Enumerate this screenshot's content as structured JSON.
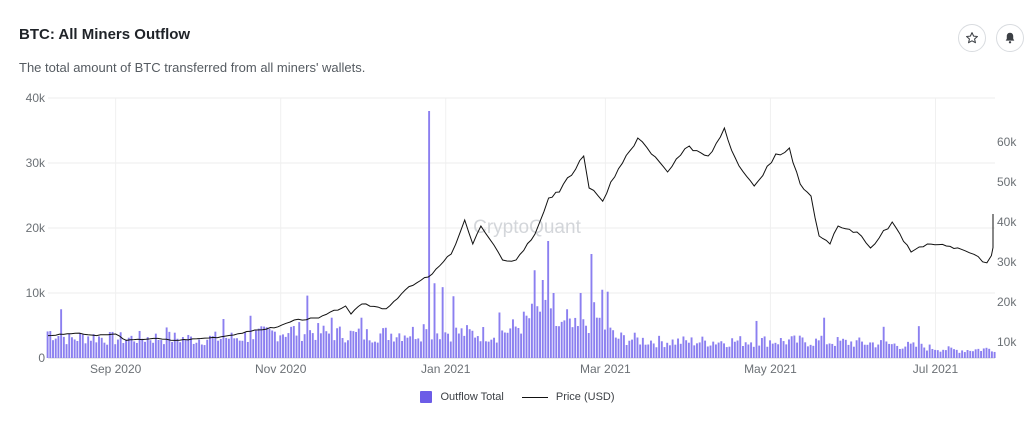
{
  "header": {
    "title": "BTC: All Miners Outflow",
    "subtitle": "The total amount of BTC transferred from all miners' wallets."
  },
  "icons": {
    "favorite": "star-icon",
    "alert": "bell-icon"
  },
  "watermark": "CryptoQuant",
  "colors": {
    "bars": "#8b7ff0",
    "bar_legend": "#6c5ce7",
    "price_line": "#111111",
    "grid": "#ececec"
  },
  "chart_data": {
    "type": "bar",
    "x_range": [
      "2020-08-07",
      "2021-07-23"
    ],
    "x_ticks": [
      "Sep 2020",
      "Nov 2020",
      "Jan 2021",
      "Mar 2021",
      "May 2021",
      "Jul 2021"
    ],
    "y_left": {
      "ticks": [
        "0",
        "10k",
        "20k",
        "30k",
        "40k"
      ],
      "range": [
        0,
        40000
      ]
    },
    "y_right": {
      "ticks": [
        "10k",
        "20k",
        "30k",
        "40k",
        "50k",
        "60k"
      ],
      "range": [
        6000,
        71000
      ]
    },
    "grid": true,
    "legend_position": "bottom-center",
    "series": [
      {
        "name": "Outflow Total",
        "kind": "bar",
        "axis": "left",
        "unit": "BTC",
        "anchors": [
          [
            "2020-08-07",
            4200
          ],
          [
            "2020-08-15",
            3000
          ],
          [
            "2020-08-22",
            3400
          ],
          [
            "2020-09-01",
            3000
          ],
          [
            "2020-09-15",
            3200
          ],
          [
            "2020-10-01",
            3000
          ],
          [
            "2020-10-15",
            3200
          ],
          [
            "2020-10-25",
            3700
          ],
          [
            "2020-11-05",
            4300
          ],
          [
            "2020-11-20",
            3900
          ],
          [
            "2020-12-01",
            3600
          ],
          [
            "2020-12-15",
            3900
          ],
          [
            "2020-12-27",
            4200
          ],
          [
            "2021-01-10",
            3900
          ],
          [
            "2021-01-20",
            3700
          ],
          [
            "2021-01-28",
            5000
          ],
          [
            "2021-02-05",
            7500
          ],
          [
            "2021-02-12",
            5000
          ],
          [
            "2021-02-20",
            4500
          ],
          [
            "2021-02-25",
            6500
          ],
          [
            "2021-03-05",
            3200
          ],
          [
            "2021-03-20",
            2600
          ],
          [
            "2021-04-10",
            2600
          ],
          [
            "2021-05-01",
            2700
          ],
          [
            "2021-05-20",
            2600
          ],
          [
            "2021-06-10",
            2300
          ],
          [
            "2021-06-25",
            1800
          ],
          [
            "2021-07-10",
            1200
          ],
          [
            "2021-07-23",
            1500
          ]
        ],
        "spikes": [
          [
            "2020-08-12",
            7500
          ],
          [
            "2020-09-20",
            4700
          ],
          [
            "2020-10-11",
            6000
          ],
          [
            "2020-10-21",
            6500
          ],
          [
            "2020-11-11",
            9600
          ],
          [
            "2020-11-20",
            6200
          ],
          [
            "2020-12-01",
            6200
          ],
          [
            "2020-12-24",
            5200
          ],
          [
            "2020-12-26",
            38000
          ],
          [
            "2020-12-28",
            11500
          ],
          [
            "2020-12-31",
            10900
          ],
          [
            "2021-01-04",
            9500
          ],
          [
            "2021-01-21",
            7000
          ],
          [
            "2021-02-03",
            13500
          ],
          [
            "2021-02-06",
            12000
          ],
          [
            "2021-02-08",
            18000
          ],
          [
            "2021-02-10",
            10000
          ],
          [
            "2021-02-15",
            7500
          ],
          [
            "2021-02-20",
            10000
          ],
          [
            "2021-02-24",
            16000
          ],
          [
            "2021-02-28",
            10500
          ],
          [
            "2021-03-02",
            10200
          ],
          [
            "2021-04-26",
            5700
          ],
          [
            "2021-05-21",
            6200
          ],
          [
            "2021-06-12",
            4800
          ],
          [
            "2021-06-25",
            4900
          ]
        ]
      },
      {
        "name": "Price (USD)",
        "kind": "line",
        "axis": "right",
        "unit": "USD",
        "points": [
          [
            "2020-08-07",
            11600
          ],
          [
            "2020-08-17",
            12200
          ],
          [
            "2020-08-25",
            11600
          ],
          [
            "2020-09-01",
            12000
          ],
          [
            "2020-09-05",
            10400
          ],
          [
            "2020-09-15",
            10900
          ],
          [
            "2020-09-23",
            10400
          ],
          [
            "2020-10-01",
            10800
          ],
          [
            "2020-10-10",
            11300
          ],
          [
            "2020-10-21",
            12700
          ],
          [
            "2020-10-31",
            13800
          ],
          [
            "2020-11-06",
            15500
          ],
          [
            "2020-11-15",
            16000
          ],
          [
            "2020-11-25",
            19000
          ],
          [
            "2020-11-27",
            17000
          ],
          [
            "2020-12-01",
            19500
          ],
          [
            "2020-12-10",
            18300
          ],
          [
            "2020-12-17",
            23000
          ],
          [
            "2020-12-27",
            27000
          ],
          [
            "2021-01-03",
            32000
          ],
          [
            "2021-01-08",
            40500
          ],
          [
            "2021-01-11",
            34500
          ],
          [
            "2021-01-14",
            39000
          ],
          [
            "2021-01-22",
            30500
          ],
          [
            "2021-01-27",
            30500
          ],
          [
            "2021-02-03",
            37000
          ],
          [
            "2021-02-08",
            46000
          ],
          [
            "2021-02-12",
            47500
          ],
          [
            "2021-02-21",
            56500
          ],
          [
            "2021-02-23",
            48500
          ],
          [
            "2021-02-28",
            45200
          ],
          [
            "2021-03-03",
            50000
          ],
          [
            "2021-03-13",
            61000
          ],
          [
            "2021-03-18",
            57000
          ],
          [
            "2021-03-24",
            52500
          ],
          [
            "2021-04-01",
            59000
          ],
          [
            "2021-04-08",
            56500
          ],
          [
            "2021-04-14",
            63500
          ],
          [
            "2021-04-18",
            56000
          ],
          [
            "2021-04-25",
            49000
          ],
          [
            "2021-05-03",
            57000
          ],
          [
            "2021-05-08",
            58500
          ],
          [
            "2021-05-12",
            49500
          ],
          [
            "2021-05-16",
            46500
          ],
          [
            "2021-05-19",
            36500
          ],
          [
            "2021-05-23",
            34500
          ],
          [
            "2021-05-26",
            39000
          ],
          [
            "2021-06-02",
            37500
          ],
          [
            "2021-06-07",
            33500
          ],
          [
            "2021-06-15",
            40000
          ],
          [
            "2021-06-22",
            32500
          ],
          [
            "2021-06-28",
            34500
          ],
          [
            "2021-07-05",
            34000
          ],
          [
            "2021-07-12",
            32800
          ],
          [
            "2021-07-20",
            29800
          ],
          [
            "2021-07-25",
            35000
          ],
          [
            "2021-07-28",
            40000
          ],
          [
            "2021-07-31",
            42000
          ],
          [
            "2021-08-03",
            39500
          ]
        ]
      }
    ]
  }
}
